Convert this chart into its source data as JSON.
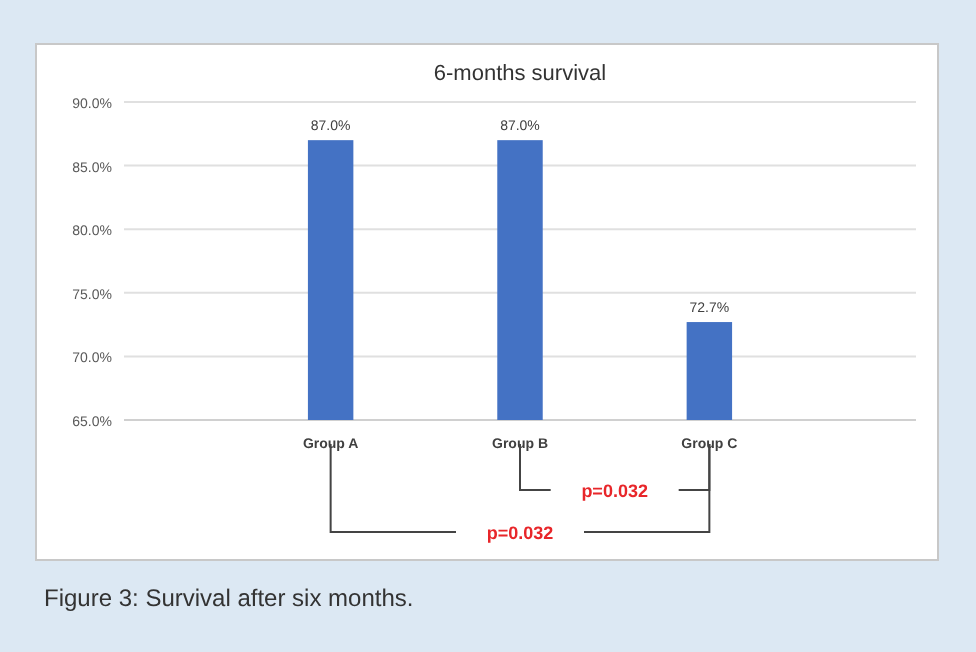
{
  "chart_data": {
    "type": "bar",
    "title": "6-months survival",
    "categories": [
      "Group A",
      "Group B",
      "Group C"
    ],
    "values": [
      87.0,
      87.0,
      72.7
    ],
    "value_labels": [
      "87.0%",
      "87.0%",
      "72.7%"
    ],
    "color": "#4472c4",
    "ylim": [
      65,
      90
    ],
    "yticks": [
      {
        "value": 65,
        "label": "65.0%"
      },
      {
        "value": 70,
        "label": "70.0%"
      },
      {
        "value": 75,
        "label": "75.0%"
      },
      {
        "value": 80,
        "label": "80.0%"
      },
      {
        "value": 85,
        "label": "85.0%"
      },
      {
        "value": 90,
        "label": "90.0%"
      }
    ],
    "grid": "y",
    "annotations": [
      "p=0.032",
      "p=0.032",
      "Figure 3: Survival after six months."
    ]
  }
}
